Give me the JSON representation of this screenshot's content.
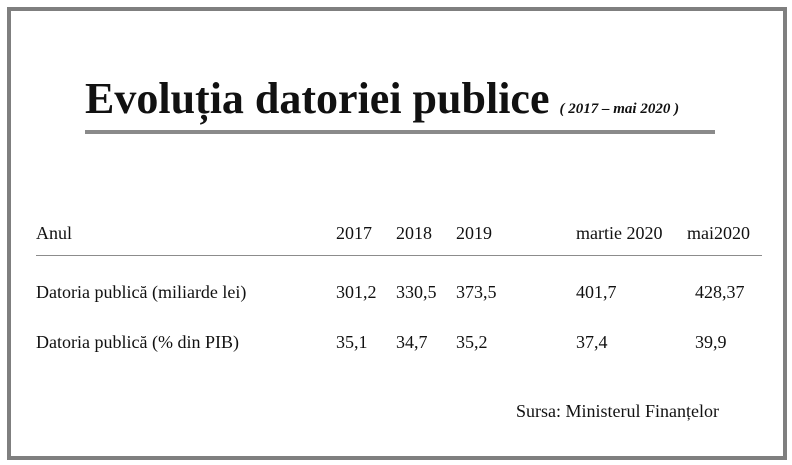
{
  "title": "Evoluția datoriei publice",
  "subtitle": "( 2017 – mai 2020 )",
  "table": {
    "header": [
      "Anul",
      "2017",
      "2018",
      "2019",
      "martie 2020",
      "mai2020"
    ],
    "rows": [
      [
        "Datoria publică (miliarde lei)",
        "301,2",
        "330,5",
        "373,5",
        "401,7",
        "428,37"
      ],
      [
        "Datoria publică (% din PIB)",
        "35,1",
        "34,7",
        "35,2",
        "37,4",
        "39,9"
      ]
    ]
  },
  "source": "Sursa: Ministerul Finanțelor"
}
